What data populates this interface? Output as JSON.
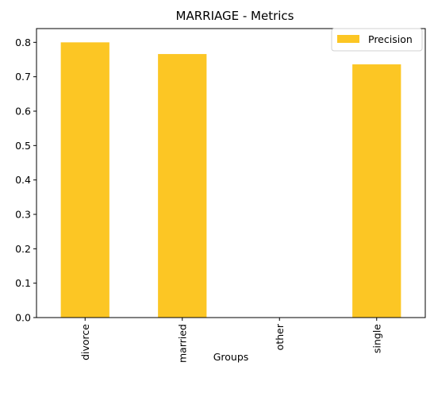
{
  "chart_data": {
    "type": "bar",
    "title": "MARRIAGE - Metrics",
    "xlabel": "Groups",
    "ylabel": "",
    "categories": [
      "divorce",
      "married",
      "other",
      "single"
    ],
    "series": [
      {
        "name": "Precision",
        "values": [
          0.8,
          0.766,
          0.0,
          0.736
        ],
        "color": "#fcc624"
      }
    ],
    "ylim": [
      0,
      0.84
    ],
    "yticks": [
      0.0,
      0.1,
      0.2,
      0.3,
      0.4,
      0.5,
      0.6,
      0.7,
      0.8
    ],
    "ytick_labels": [
      "0.0",
      "0.1",
      "0.2",
      "0.3",
      "0.4",
      "0.5",
      "0.6",
      "0.7",
      "0.8"
    ],
    "grid": false,
    "legend": "top-right"
  }
}
